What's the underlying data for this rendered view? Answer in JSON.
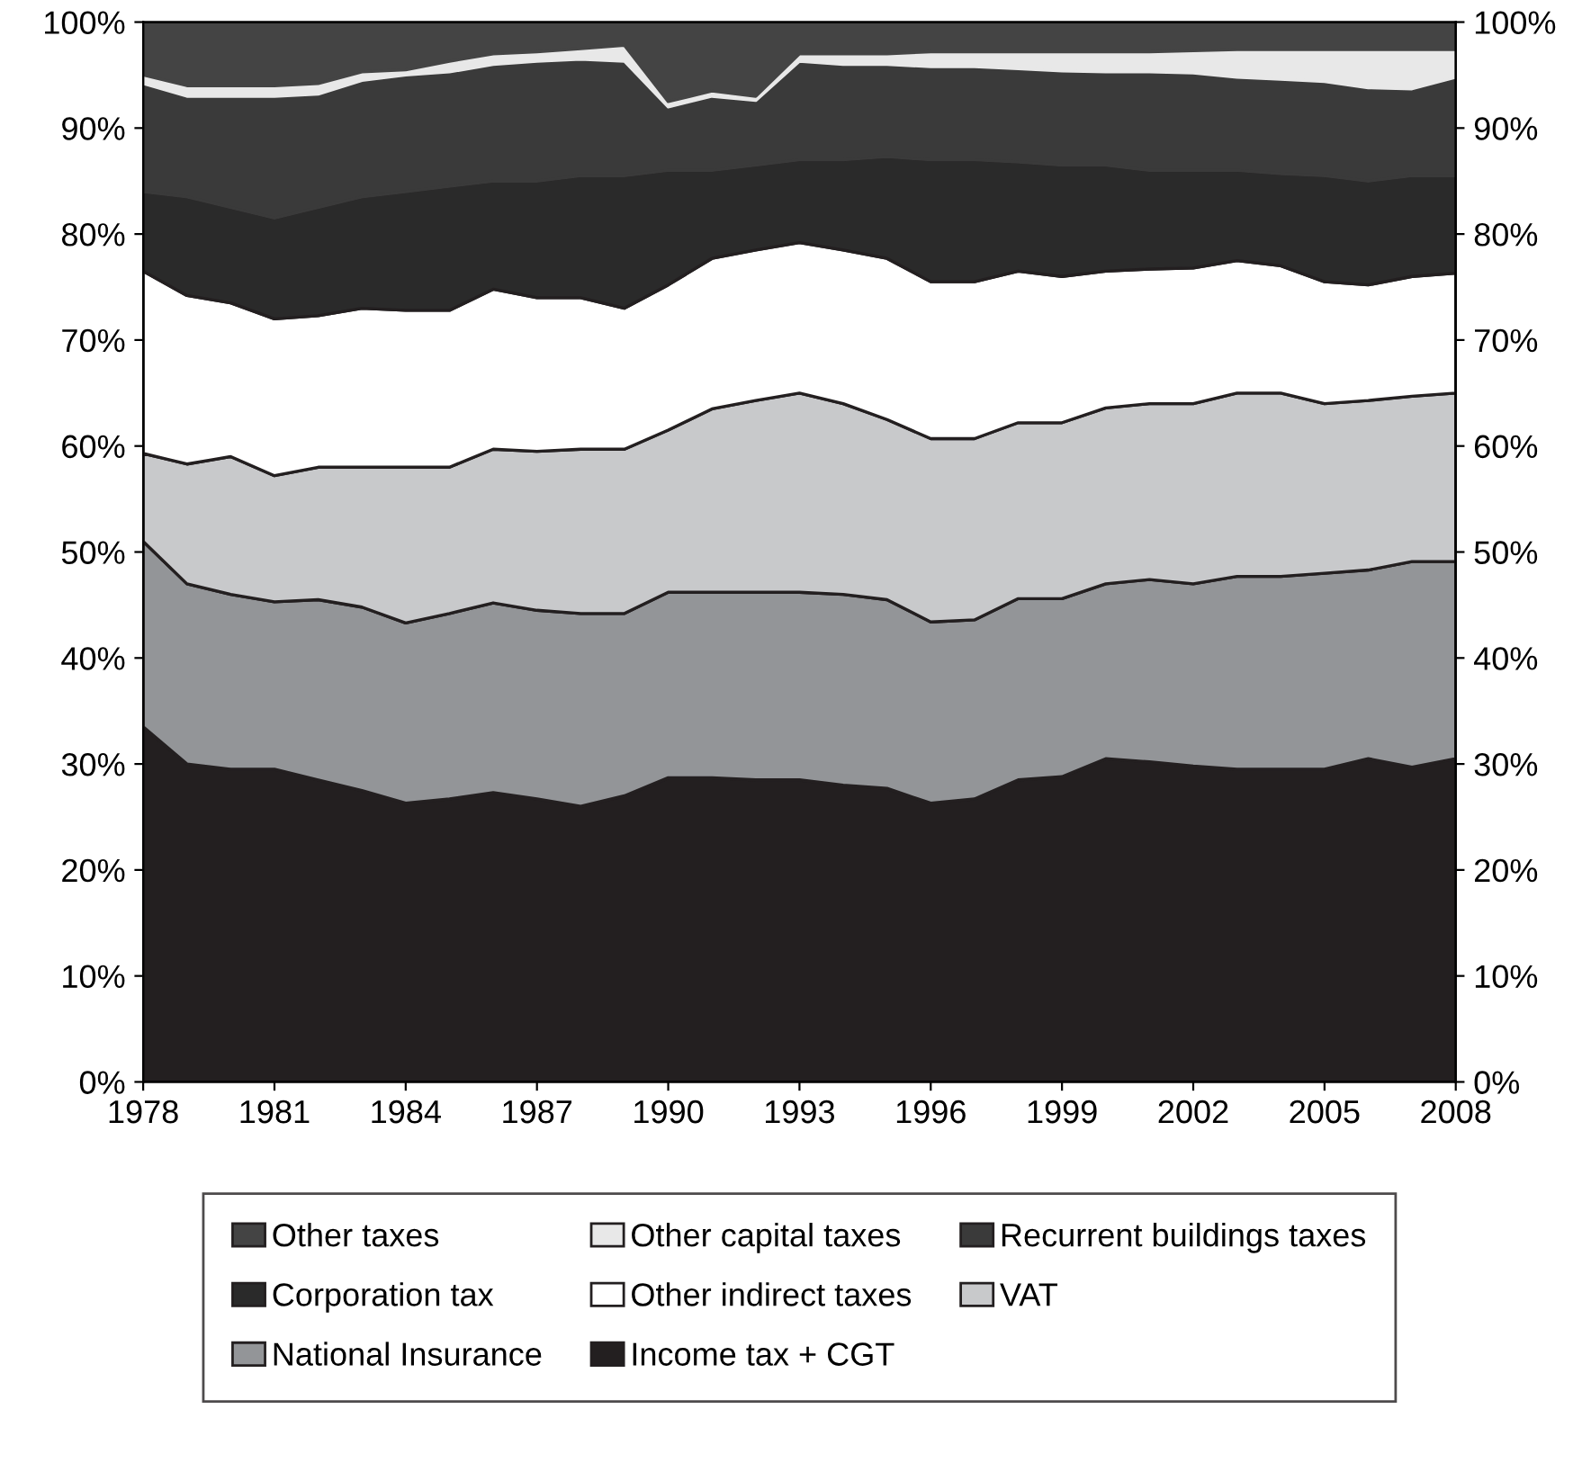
{
  "chart_data": {
    "type": "area",
    "stacked": true,
    "x": [
      1978,
      1979,
      1980,
      1981,
      1982,
      1983,
      1984,
      1985,
      1986,
      1987,
      1988,
      1989,
      1990,
      1991,
      1992,
      1993,
      1994,
      1995,
      1996,
      1997,
      1998,
      1999,
      2000,
      2001,
      2002,
      2003,
      2004,
      2005,
      2006,
      2007,
      2008
    ],
    "series": [
      {
        "name": "Income tax + CGT",
        "color": "#231f20",
        "values": [
          33.5,
          30,
          29.5,
          29.5,
          28.5,
          27.5,
          26.3,
          26.7,
          27.3,
          26.7,
          26,
          27,
          28.7,
          28.7,
          28.5,
          28.5,
          28,
          27.7,
          26.3,
          26.7,
          28.5,
          28.8,
          30.5,
          30.2,
          29.8,
          29.5,
          29.5,
          29.5,
          30.5,
          29.7,
          30.5
        ]
      },
      {
        "name": "National Insurance",
        "color": "#939598",
        "values": [
          17.5,
          17,
          16.5,
          15.8,
          17,
          17.3,
          17,
          17.5,
          17.9,
          17.8,
          18.2,
          17.2,
          17.5,
          17.5,
          17.7,
          17.7,
          18,
          17.8,
          17.1,
          16.9,
          17.1,
          16.8,
          16.5,
          17.2,
          17.2,
          18.2,
          18.2,
          18.5,
          17.8,
          19.4,
          18.6
        ]
      },
      {
        "name": "VAT",
        "color": "#c8c9cb",
        "values": [
          8.3,
          11.3,
          13,
          11.9,
          12.5,
          13.2,
          14.7,
          13.8,
          14.5,
          15,
          15.5,
          15.5,
          15.3,
          17.3,
          18.1,
          18.8,
          18,
          17,
          17.3,
          17.1,
          16.6,
          16.6,
          16.6,
          16.6,
          17,
          17.3,
          17.3,
          16,
          16,
          15.6,
          15.9
        ]
      },
      {
        "name": "Other indirect taxes",
        "color": "#ffffff",
        "values": [
          17.2,
          15.9,
          14.5,
          14.8,
          14.3,
          15,
          14.8,
          14.8,
          15.1,
          14.5,
          14.3,
          13.3,
          13.7,
          14.2,
          14.2,
          14.2,
          14.5,
          15.2,
          14.8,
          14.8,
          14.3,
          13.8,
          12.9,
          12.7,
          12.8,
          12.5,
          12,
          11.5,
          10.9,
          11.3,
          11.3
        ]
      },
      {
        "name": "Corporation tax",
        "color": "#2a2a2a",
        "values": [
          7.5,
          9.3,
          9,
          9.5,
          10.2,
          10.5,
          11.2,
          11.7,
          10.2,
          11,
          11.5,
          12.5,
          10.8,
          8.3,
          8,
          7.8,
          8.5,
          9.6,
          11.5,
          11.5,
          10.3,
          10.5,
          10,
          9.3,
          9.2,
          8.5,
          8.7,
          10,
          9.8,
          9.5,
          9.2
        ]
      },
      {
        "name": "Recurrent buildings taxes",
        "color": "#3a3a3a",
        "values": [
          10.2,
          9.5,
          10.5,
          11.5,
          10.7,
          11,
          11,
          10.8,
          11,
          11.3,
          11,
          10.8,
          6,
          7,
          6.1,
          9.3,
          9,
          8.7,
          8.8,
          8.8,
          8.8,
          8.9,
          8.8,
          9.3,
          9.2,
          8.8,
          8.9,
          8.9,
          8.8,
          8.2,
          9.3
        ]
      },
      {
        "name": "Other capital taxes",
        "color": "#e8e8e8",
        "values": [
          0.8,
          1,
          1,
          1,
          1,
          0.8,
          0.5,
          1,
          1,
          0.9,
          1,
          1.5,
          0.5,
          0.5,
          0.4,
          0.7,
          1,
          1,
          1.4,
          1.4,
          1.6,
          1.8,
          1.9,
          1.9,
          2.1,
          2.6,
          2.8,
          3,
          3.6,
          3.7,
          2.6
        ]
      },
      {
        "name": "Other taxes",
        "color": "#444444",
        "values": [
          5,
          6,
          6,
          6,
          5.8,
          4.7,
          4.5,
          3.7,
          3,
          2.8,
          2.5,
          2.2,
          7.5,
          6.5,
          7,
          3,
          3,
          3,
          2.8,
          2.8,
          2.8,
          2.8,
          2.8,
          2.8,
          2.7,
          2.6,
          2.6,
          2.6,
          2.6,
          2.6,
          2.6
        ]
      }
    ],
    "xlim": [
      1978,
      2008
    ],
    "xticks": [
      1978,
      1981,
      1984,
      1987,
      1990,
      1993,
      1996,
      1999,
      2002,
      2005,
      2008
    ],
    "ylim": [
      0,
      100
    ],
    "yticks": [
      {
        "value": 0,
        "label": "0%"
      },
      {
        "value": 10,
        "label": "10%"
      },
      {
        "value": 20,
        "label": "20%"
      },
      {
        "value": 30,
        "label": "30%"
      },
      {
        "value": 40,
        "label": "40%"
      },
      {
        "value": 50,
        "label": "50%"
      },
      {
        "value": 60,
        "label": "60%"
      },
      {
        "value": 70,
        "label": "70%"
      },
      {
        "value": 80,
        "label": "80%"
      },
      {
        "value": 90,
        "label": "90%"
      },
      {
        "value": 100,
        "label": "100%"
      }
    ],
    "y2lim": [
      0,
      100
    ],
    "y2ticks": [
      {
        "value": 0,
        "label": "0%"
      },
      {
        "value": 10,
        "label": "10%"
      },
      {
        "value": 20,
        "label": "20%"
      },
      {
        "value": 30,
        "label": "30%"
      },
      {
        "value": 40,
        "label": "40%"
      },
      {
        "value": 50,
        "label": "50%"
      },
      {
        "value": 60,
        "label": "60%"
      },
      {
        "value": 70,
        "label": "70%"
      },
      {
        "value": 80,
        "label": "80%"
      },
      {
        "value": 90,
        "label": "90%"
      },
      {
        "value": 100,
        "label": "100%"
      }
    ],
    "legend": "bottom",
    "grid": false
  }
}
